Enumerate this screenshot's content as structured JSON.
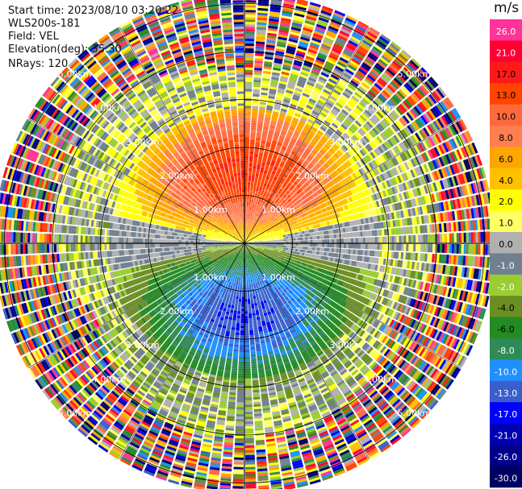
{
  "info": {
    "start_time": "Start time: 2023/08/10 03:20:22",
    "instrument": "WLS200s-181",
    "field": "Field: VEL",
    "elevation": "Elevation(deg): 35.30",
    "nrays": "NRays: 120"
  },
  "chart_data": {
    "type": "heatmap",
    "projection": "polar-ppi",
    "field": "VEL",
    "units": "m/s",
    "n_rays": 120,
    "range_rings": [
      {
        "label": "1.00km",
        "km": 1.0
      },
      {
        "label": "2.00km",
        "km": 2.0
      },
      {
        "label": "3.00km",
        "km": 3.0
      },
      {
        "label": "4.00km",
        "km": 4.0
      },
      {
        "label": "5.00km",
        "km": 5.0
      }
    ],
    "max_range_km": 5.2,
    "colorbar": {
      "unit": "m/s",
      "ticks": [
        "26.0",
        "21.0",
        "17.0",
        "13.0",
        "10.0",
        "8.0",
        "6.0",
        "4.0",
        "2.0",
        "1.0",
        "0.0",
        "-1.0",
        "-2.0",
        "-4.0",
        "-6.0",
        "-8.0",
        "-10.0",
        "-13.0",
        "-17.0",
        "-21.0",
        "-26.0",
        "-30.0"
      ],
      "colors": [
        "#ff3399",
        "#ff0033",
        "#ff1a1a",
        "#ff4500",
        "#ff6a3d",
        "#ff7f50",
        "#ffa500",
        "#ffc000",
        "#ffff00",
        "#ffff66",
        "#b0b0b0",
        "#708090",
        "#9acd32",
        "#6b8e23",
        "#228b22",
        "#2e8b57",
        "#1e90ff",
        "#3a5fcd",
        "#0000ff",
        "#0000b3",
        "#00008b",
        "#000060"
      ]
    },
    "field_pattern": {
      "description": "Dipole radial velocity: positive (warm) toward north, negative (green/blue) toward south",
      "max_positive_ms": 17.0,
      "max_negative_ms": -13.0,
      "noise_beyond_km": 3.3
    }
  }
}
